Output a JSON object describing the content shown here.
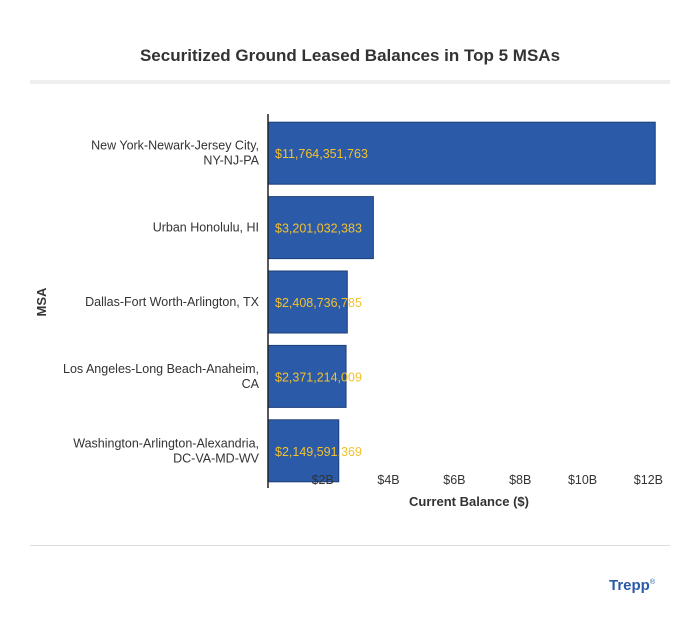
{
  "chart_data": {
    "type": "bar",
    "orientation": "horizontal",
    "title": "Securitized Ground Leased Balances in Top 5 MSAs",
    "xlabel": "Current Balance ($)",
    "ylabel": "MSA",
    "xlim": [
      0,
      12000000000
    ],
    "xticks": [
      {
        "value": 2000000000,
        "label": "$2B"
      },
      {
        "value": 4000000000,
        "label": "$4B"
      },
      {
        "value": 6000000000,
        "label": "$6B"
      },
      {
        "value": 8000000000,
        "label": "$8B"
      },
      {
        "value": 10000000000,
        "label": "$10B"
      },
      {
        "value": 12000000000,
        "label": "$12B"
      }
    ],
    "categories": [
      [
        "New York-Newark-Jersey City,",
        "NY-NJ-PA"
      ],
      [
        "Urban Honolulu, HI"
      ],
      [
        "Dallas-Fort Worth-Arlington, TX"
      ],
      [
        "Los Angeles-Long Beach-Anaheim,",
        "CA"
      ],
      [
        "Washington-Arlington-Alexandria,",
        "DC-VA-MD-WV"
      ]
    ],
    "values": [
      11764351763,
      3201032383,
      2408736785,
      2371214009,
      2149591369
    ],
    "value_labels": [
      "$11,764,351,763",
      "$3,201,032,383",
      "$2,408,736,785",
      "$2,371,214,009",
      "$2,149,591,369"
    ],
    "colors": {
      "bar": "#2b5aa8",
      "bar_border": "#1d3f7a",
      "value_label": "#f2c12e",
      "text": "#333333"
    }
  },
  "footer": {
    "logo_text": "Trepp",
    "logo_mark": "®"
  }
}
